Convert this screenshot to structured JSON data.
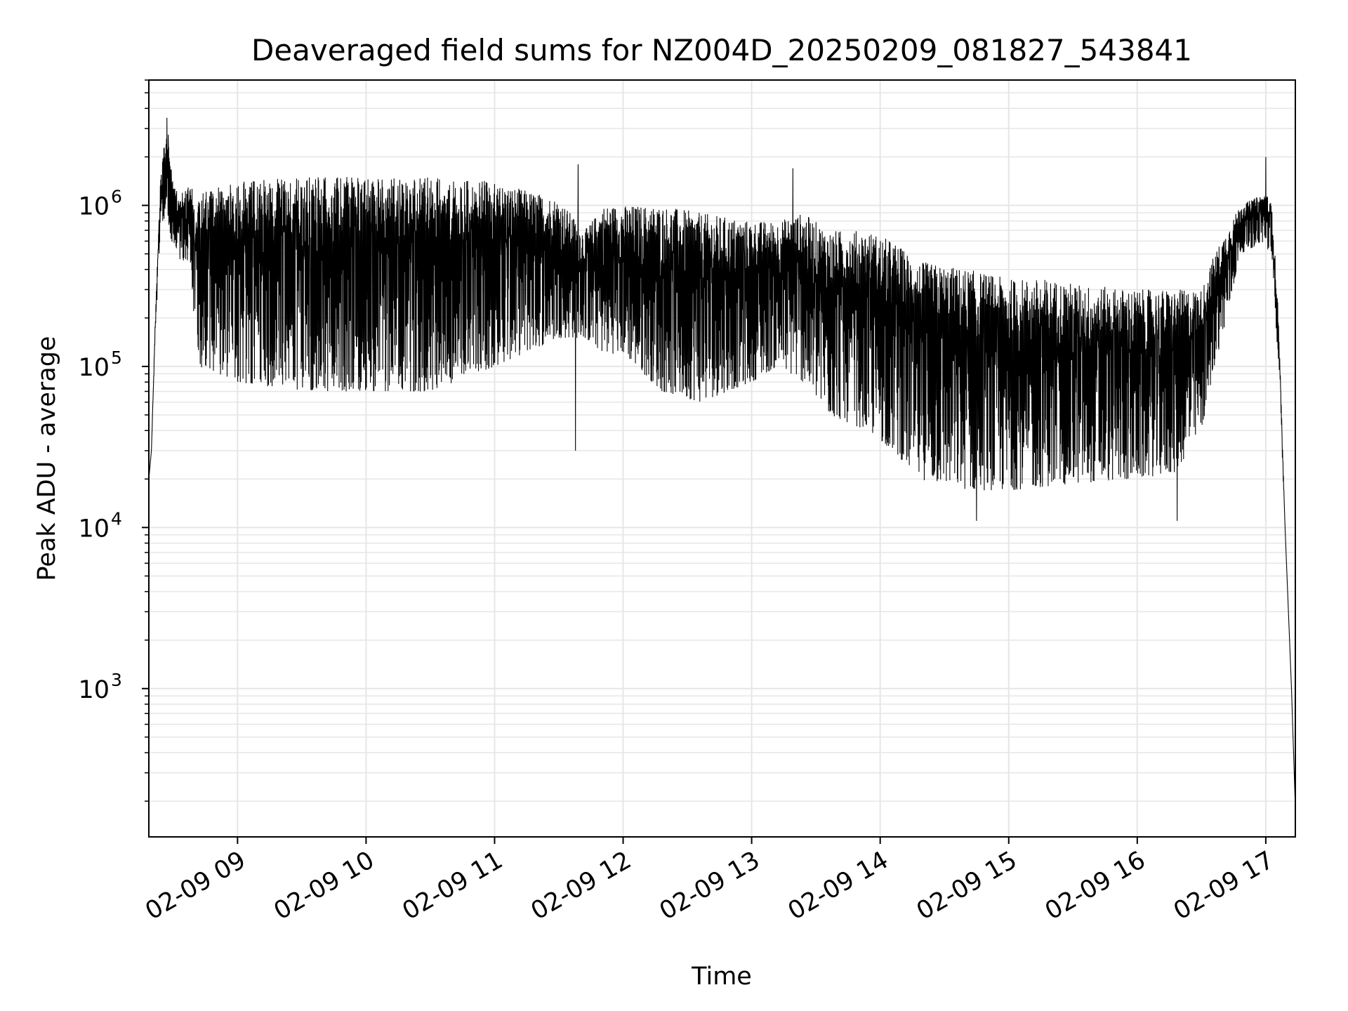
{
  "chart_data": {
    "type": "line",
    "title": "Deaveraged field sums for NZ004D_20250209_081827_543841",
    "xlabel": "Time",
    "ylabel": "Peak ADU - average",
    "x_start": "2025-02-09 08:18",
    "x_end": "2025-02-09 17:14",
    "xlim_hours": [
      8.31,
      17.23
    ],
    "x_ticks": [
      {
        "hour": 9,
        "label": "02-09 09"
      },
      {
        "hour": 10,
        "label": "02-09 10"
      },
      {
        "hour": 11,
        "label": "02-09 11"
      },
      {
        "hour": 12,
        "label": "02-09 12"
      },
      {
        "hour": 13,
        "label": "02-09 13"
      },
      {
        "hour": 14,
        "label": "02-09 14"
      },
      {
        "hour": 15,
        "label": "02-09 15"
      },
      {
        "hour": 16,
        "label": "02-09 16"
      },
      {
        "hour": 17,
        "label": "02-09 17"
      }
    ],
    "y_scale": "log",
    "ylim": [
      120,
      6000000
    ],
    "y_ticks": [
      {
        "value": 1000,
        "base": "10",
        "exp": "3"
      },
      {
        "value": 10000,
        "base": "10",
        "exp": "4"
      },
      {
        "value": 100000,
        "base": "10",
        "exp": "5"
      },
      {
        "value": 1000000,
        "base": "10",
        "exp": "6"
      }
    ],
    "grid": true,
    "line_color": "#000000",
    "grid_color": "#e6e6e6",
    "series": [
      {
        "name": "",
        "envelope": [
          [
            8.31,
            20000,
            20000
          ],
          [
            8.33,
            30000,
            30000
          ],
          [
            8.36,
            150000,
            200000
          ],
          [
            8.4,
            700000,
            1400000
          ],
          [
            8.45,
            900000,
            3500000
          ],
          [
            8.5,
            500000,
            1300000
          ],
          [
            8.55,
            450000,
            1200000
          ],
          [
            8.62,
            450000,
            1300000
          ],
          [
            8.7,
            100000,
            1300000
          ],
          [
            9.0,
            80000,
            1400000
          ],
          [
            9.5,
            70000,
            1500000
          ],
          [
            10.0,
            70000,
            1500000
          ],
          [
            10.5,
            70000,
            1500000
          ],
          [
            11.0,
            100000,
            1400000
          ],
          [
            11.5,
            150000,
            1100000
          ],
          [
            11.7,
            150000,
            700000
          ],
          [
            11.85,
            120000,
            1000000
          ],
          [
            12.0,
            120000,
            1000000
          ],
          [
            12.3,
            70000,
            1000000
          ],
          [
            12.6,
            60000,
            900000
          ],
          [
            13.0,
            80000,
            800000
          ],
          [
            13.2,
            100000,
            800000
          ],
          [
            13.4,
            80000,
            900000
          ],
          [
            13.6,
            50000,
            700000
          ],
          [
            13.9,
            40000,
            700000
          ],
          [
            14.1,
            30000,
            600000
          ],
          [
            14.3,
            20000,
            450000
          ],
          [
            14.7,
            17000,
            400000
          ],
          [
            15.0,
            17000,
            350000
          ],
          [
            15.3,
            18000,
            350000
          ],
          [
            15.6,
            19000,
            320000
          ],
          [
            16.0,
            20000,
            300000
          ],
          [
            16.3,
            22000,
            300000
          ],
          [
            16.5,
            40000,
            300000
          ],
          [
            16.6,
            100000,
            500000
          ],
          [
            16.7,
            200000,
            700000
          ],
          [
            16.8,
            500000,
            1000000
          ],
          [
            17.0,
            600000,
            1200000
          ],
          [
            17.05,
            400000,
            1000000
          ],
          [
            17.1,
            100000,
            200000
          ],
          [
            17.15,
            10000,
            10000
          ],
          [
            17.2,
            1000,
            1000
          ],
          [
            17.23,
            180,
            180
          ]
        ],
        "spikes_high": [
          {
            "hour": 8.45,
            "value": 3500000
          },
          {
            "hour": 11.65,
            "value": 1800000
          },
          {
            "hour": 13.32,
            "value": 1700000
          },
          {
            "hour": 17.0,
            "value": 2000000
          }
        ],
        "spikes_low": [
          {
            "hour": 11.63,
            "value": 30000
          },
          {
            "hour": 14.75,
            "value": 11000
          },
          {
            "hour": 16.31,
            "value": 11000
          }
        ]
      }
    ]
  }
}
